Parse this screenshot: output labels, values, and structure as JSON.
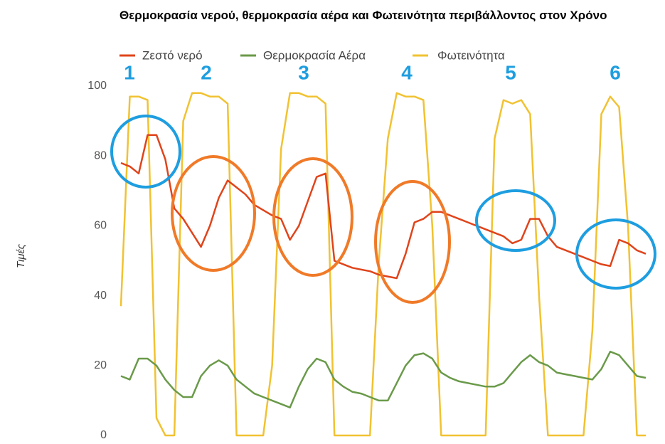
{
  "chart_data": {
    "type": "line",
    "title": "Θερμοκρασία νερού, θερμοκρασία αέρα και Φωτεινότητα περιβάλλοντος στον Χρόνο",
    "y_label": "Τιμές",
    "categories": [
      null,
      null,
      null,
      null,
      null,
      null,
      null,
      null,
      null,
      null,
      null,
      null,
      null,
      null,
      null,
      null,
      null,
      null,
      null,
      null,
      null,
      null,
      null,
      null,
      null,
      null,
      null,
      null,
      null,
      null,
      null,
      null,
      null,
      null,
      null,
      null,
      null,
      null,
      null,
      null,
      null,
      null,
      null,
      null,
      null,
      null,
      null,
      null,
      null,
      null,
      null,
      null,
      null,
      null,
      null,
      null,
      null,
      null,
      null,
      null
    ],
    "series": [
      {
        "name": "Ζεστό νερό",
        "color": "#e0441b",
        "values": [
          78,
          77,
          75,
          86,
          86,
          79,
          65,
          62,
          58,
          54,
          60,
          68,
          73,
          71,
          69,
          66,
          64.5,
          63,
          62,
          56,
          60,
          67,
          74,
          75,
          50,
          49,
          48,
          47.5,
          47,
          46,
          45.5,
          45,
          52,
          61,
          62,
          64,
          64,
          63,
          62,
          61,
          60,
          59,
          58,
          57,
          55,
          56,
          62,
          62,
          57,
          54,
          53,
          52,
          51,
          50,
          49,
          48.5,
          56,
          55,
          53,
          52
        ]
      },
      {
        "name": "Θερμοκρασία Αέρα",
        "color": "#6a9a4a",
        "values": [
          17,
          16,
          22,
          22,
          20,
          16,
          13,
          11,
          11,
          17,
          20,
          21.5,
          20,
          16,
          14,
          12,
          11,
          10,
          9,
          8,
          14,
          19,
          22,
          21,
          16,
          14,
          12.5,
          12,
          11,
          10,
          10,
          15,
          20,
          23,
          23.5,
          22,
          18,
          16.5,
          15.5,
          15,
          14.5,
          14,
          14,
          15,
          18,
          21,
          23,
          21,
          20,
          18,
          17.5,
          17,
          16.5,
          16,
          19,
          24,
          23,
          20,
          17,
          16.5
        ]
      },
      {
        "name": "Φωτεινότητα",
        "color": "#f1c232",
        "values": [
          37,
          97,
          97,
          96,
          5,
          0,
          0,
          90,
          98,
          98,
          97,
          97,
          95,
          0,
          0,
          0,
          0,
          20,
          82,
          98,
          98,
          97,
          97,
          95,
          0,
          0,
          0,
          0,
          0,
          50,
          85,
          98,
          97,
          97,
          96,
          60,
          0,
          0,
          0,
          0,
          0,
          0,
          85,
          96,
          95,
          96,
          92,
          40,
          0,
          0,
          0,
          0,
          0,
          30,
          92,
          97,
          94,
          60,
          0,
          0
        ]
      }
    ],
    "ylim": [
      0,
      100
    ],
    "yticks": [
      0,
      20,
      40,
      60,
      80,
      100
    ],
    "grid": false,
    "annotations": [
      "1",
      "2",
      "3",
      "4",
      "5",
      "6"
    ]
  }
}
